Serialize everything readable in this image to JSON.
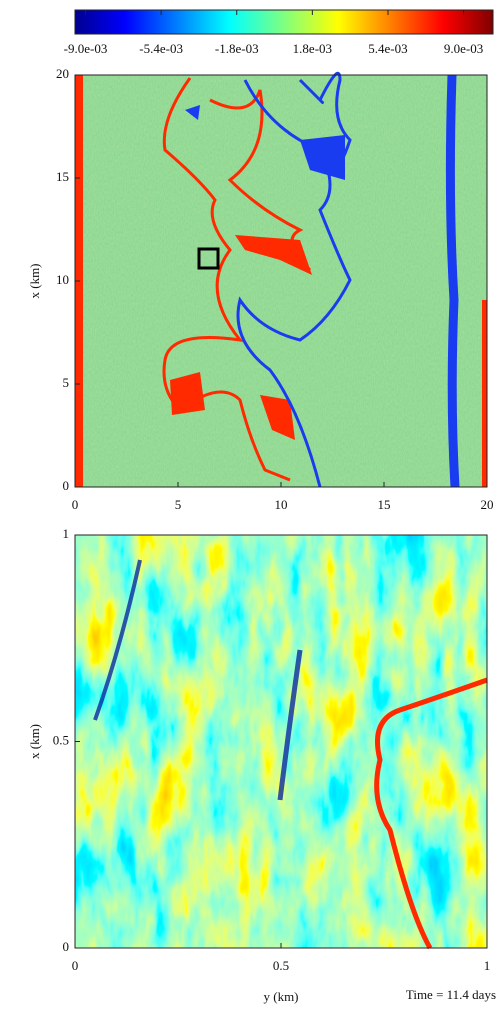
{
  "colorbar": {
    "lim": [
      -0.0095,
      0.0104
    ],
    "ticks": [
      {
        "value": -0.009,
        "label": "-9.0e-03"
      },
      {
        "value": -0.0054,
        "label": "-5.4e-03"
      },
      {
        "value": -0.0018,
        "label": "-1.8e-03"
      },
      {
        "value": 0.0018,
        "label": "1.8e-03"
      },
      {
        "value": 0.0054,
        "label": "5.4e-03"
      },
      {
        "value": 0.009,
        "label": "9.0e-03"
      }
    ]
  },
  "chart_data": [
    {
      "type": "heatmap",
      "ylabel": "x (km)",
      "xlim": [
        0,
        20
      ],
      "xticks": [
        0,
        5,
        10,
        15,
        20
      ],
      "ylim": [
        0,
        20
      ],
      "yticks": [
        0,
        5,
        10,
        15,
        20
      ]
    },
    {
      "type": "heatmap",
      "ylabel": "x (km)",
      "xlabel": "y (km)",
      "xlim": [
        0,
        1
      ],
      "xticks": [
        0,
        0.5,
        1
      ],
      "ylim": [
        0,
        1
      ],
      "yticks": [
        0,
        0.5,
        1
      ],
      "annotation": "Time = 11.4 days"
    }
  ]
}
